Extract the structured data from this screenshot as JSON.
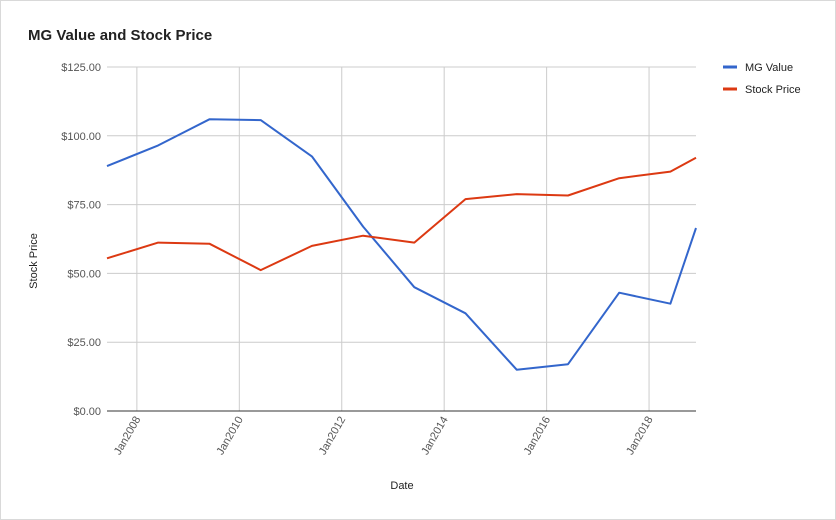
{
  "chart_data": {
    "type": "line",
    "title": "MG Value and Stock Price",
    "xlabel": "Date",
    "ylabel": "Stock Price",
    "x_ticks": [
      "Jan2008",
      "Jan2010",
      "Jan2012",
      "Jan2014",
      "Jan2016",
      "Jan2018"
    ],
    "y_ticks": [
      "$0.00",
      "$25.00",
      "$50.00",
      "$75.00",
      "$100.00",
      "$125.00"
    ],
    "ylim": [
      0,
      125
    ],
    "xlim": [
      "2007-06",
      "2018-12"
    ],
    "grid": true,
    "legend_position": "right",
    "series": [
      {
        "name": "MG Value",
        "color": "#3366cc",
        "points": [
          {
            "x": "2007-06",
            "y": 89
          },
          {
            "x": "2008-06",
            "y": 96.5
          },
          {
            "x": "2009-06",
            "y": 106
          },
          {
            "x": "2010-06",
            "y": 105.7
          },
          {
            "x": "2011-06",
            "y": 92.5
          },
          {
            "x": "2012-06",
            "y": 67
          },
          {
            "x": "2013-06",
            "y": 45
          },
          {
            "x": "2014-06",
            "y": 35.5
          },
          {
            "x": "2015-06",
            "y": 15
          },
          {
            "x": "2016-06",
            "y": 17
          },
          {
            "x": "2017-06",
            "y": 43
          },
          {
            "x": "2018-06",
            "y": 39
          },
          {
            "x": "2018-12",
            "y": 66.5
          }
        ]
      },
      {
        "name": "Stock Price",
        "color": "#dc3912",
        "points": [
          {
            "x": "2007-06",
            "y": 55.5
          },
          {
            "x": "2008-06",
            "y": 61.2
          },
          {
            "x": "2009-06",
            "y": 60.8
          },
          {
            "x": "2010-06",
            "y": 51.2
          },
          {
            "x": "2011-06",
            "y": 60
          },
          {
            "x": "2012-06",
            "y": 63.7
          },
          {
            "x": "2013-06",
            "y": 61.2
          },
          {
            "x": "2014-06",
            "y": 77
          },
          {
            "x": "2015-06",
            "y": 78.8
          },
          {
            "x": "2016-06",
            "y": 78.3
          },
          {
            "x": "2017-06",
            "y": 84.6
          },
          {
            "x": "2018-06",
            "y": 87
          },
          {
            "x": "2018-12",
            "y": 92
          }
        ]
      }
    ]
  }
}
